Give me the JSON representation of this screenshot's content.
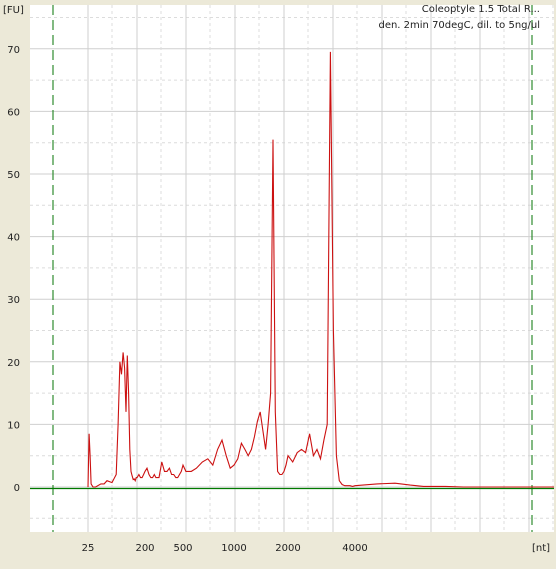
{
  "chart_data": {
    "type": "line",
    "title": "Coleoptyle 1.5 Total R...",
    "subtitle": "den. 2min 70degC, dil. to 5ng/ul",
    "ylabel": "[FU]",
    "xlabel": "[nt]",
    "ylim": [
      -8,
      76
    ],
    "y_ticks": [
      0,
      10,
      20,
      30,
      40,
      50,
      60,
      70
    ],
    "x_ticks": [
      "25",
      "200",
      "500",
      "1000",
      "2000",
      "4000"
    ],
    "grid": true,
    "colors": {
      "trace": "#cc1111",
      "baseline": "#007a00",
      "marker_lines": "#2e8b2e",
      "plot_bg": "#ffffff",
      "frame_bg": "#ece9d8"
    },
    "series": [
      {
        "x": [
          25,
          26,
          27,
          28,
          30,
          33,
          40,
          45,
          50,
          60,
          70,
          75,
          80,
          85,
          90,
          95,
          100,
          105,
          110,
          115,
          120,
          125,
          130,
          135,
          140,
          145,
          150,
          160,
          170,
          180,
          190,
          200,
          210,
          220,
          230,
          240,
          250,
          260,
          280,
          300,
          320,
          340,
          360,
          380,
          400,
          420,
          440,
          460,
          480,
          500,
          520,
          560,
          600,
          650,
          700,
          750,
          800,
          850,
          900,
          950,
          1000,
          1050,
          1100,
          1150,
          1200,
          1250,
          1300,
          1350,
          1400,
          1450,
          1500,
          1550,
          1600,
          1650,
          1700,
          1750,
          1800,
          1850,
          1900,
          1950,
          2000,
          2100,
          2200,
          2300,
          2400,
          2500,
          2600,
          2700,
          2800,
          2900,
          3000,
          3100,
          3200,
          3300,
          3400,
          3500,
          3600,
          3700,
          3800,
          3900,
          4000,
          5000,
          6000,
          7000,
          8000,
          10000,
          12000,
          15000,
          20000,
          30000
        ],
        "y": [
          0,
          8.5,
          5,
          0.5,
          0,
          0,
          0.5,
          0.5,
          1,
          0.7,
          2,
          10,
          20,
          18,
          21.5,
          19,
          12,
          21,
          15,
          6,
          2.5,
          1.8,
          1.2,
          1.3,
          1,
          1.5,
          1.5,
          2,
          1.5,
          1.5,
          2,
          2.5,
          3,
          2,
          1.5,
          1.5,
          2,
          1.5,
          1.5,
          4,
          2.5,
          2.5,
          3,
          2,
          2,
          1.5,
          1.5,
          2,
          2.5,
          3.5,
          2.5,
          2.5,
          3,
          4,
          4.5,
          3.5,
          6,
          7.5,
          5,
          3,
          3.5,
          4.5,
          7,
          6,
          5,
          6,
          8,
          10.5,
          12,
          9,
          6,
          10,
          15,
          55.5,
          12,
          2.5,
          2,
          2,
          2.5,
          3.5,
          5,
          4,
          5.5,
          6,
          5.5,
          8.5,
          5,
          6,
          4.5,
          7.5,
          10,
          69.5,
          25,
          5,
          1,
          0.4,
          0.2,
          0.2,
          0.2,
          0.1,
          0.2,
          0.5,
          0.6,
          0.3,
          0.1,
          0.1,
          0,
          0,
          0,
          0
        ],
        "note": "electropherogram trace"
      }
    ]
  }
}
